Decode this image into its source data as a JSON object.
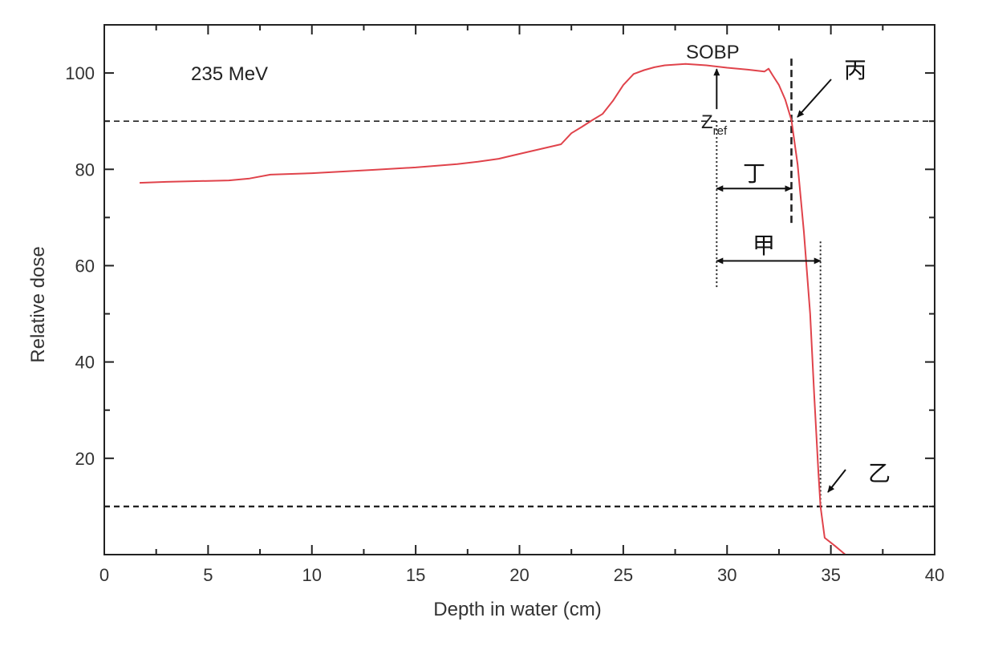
{
  "chart_data": {
    "type": "line",
    "title": "",
    "xlabel": "Depth in water (cm)",
    "ylabel": "Relative dose",
    "xlim": [
      0,
      40
    ],
    "ylim": [
      0,
      110
    ],
    "xticks": [
      0,
      5,
      10,
      15,
      20,
      25,
      30,
      35,
      40
    ],
    "yticks": [
      20,
      40,
      60,
      80,
      100
    ],
    "grid": false,
    "series": [
      {
        "name": "",
        "color": "#e0434b",
        "x": [
          1.7,
          3,
          5,
          6,
          7,
          8,
          10,
          13,
          15,
          17,
          18,
          19,
          20,
          21,
          22,
          22.5,
          23,
          23.5,
          24,
          24.5,
          25,
          25.5,
          26,
          26.5,
          27,
          28,
          29,
          30,
          31,
          31.8,
          32,
          32.2,
          32.5,
          32.8,
          33.1,
          33.4,
          33.7,
          34,
          34.2,
          34.4,
          34.5,
          34.7,
          35.2,
          35.7
        ],
        "y": [
          77.2,
          77.4,
          77.6,
          77.7,
          78.1,
          78.9,
          79.2,
          79.9,
          80.4,
          81.1,
          81.6,
          82.2,
          83.2,
          84.2,
          85.2,
          87.5,
          88.8,
          90.2,
          91.5,
          94.2,
          97.5,
          99.8,
          100.6,
          101.2,
          101.6,
          101.9,
          101.6,
          101.1,
          100.7,
          100.3,
          100.9,
          99.5,
          97.5,
          94.5,
          90.2,
          81,
          67,
          50,
          33,
          17,
          10,
          3.5,
          1.8,
          0
        ]
      }
    ],
    "reference_lines": [
      {
        "y": 90,
        "style": "dashed"
      },
      {
        "y": 10,
        "style": "dashed"
      }
    ],
    "vertical_markers": [
      {
        "x": 33.1,
        "y_range": [
          68.5,
          103
        ],
        "style": "dashed"
      },
      {
        "x": 29.5,
        "y_range": [
          55.5,
          90
        ],
        "style": "dotted"
      },
      {
        "x": 34.5,
        "y_range": [
          10,
          65
        ],
        "style": "dotted"
      }
    ],
    "arrows": [
      {
        "label": "丁",
        "from_x": 29.5,
        "to_x": 33.1,
        "y": 76
      },
      {
        "label": "甲",
        "from_x": 29.5,
        "to_x": 34.5,
        "y": 61
      }
    ],
    "annotations": {
      "energy": "235 MeV",
      "sobp": "SOBP",
      "zref_main": "Z",
      "zref_sub": "ref",
      "label_bing": "丙",
      "label_yi": "乙",
      "label_ding": "丁",
      "label_jia": "甲"
    }
  }
}
